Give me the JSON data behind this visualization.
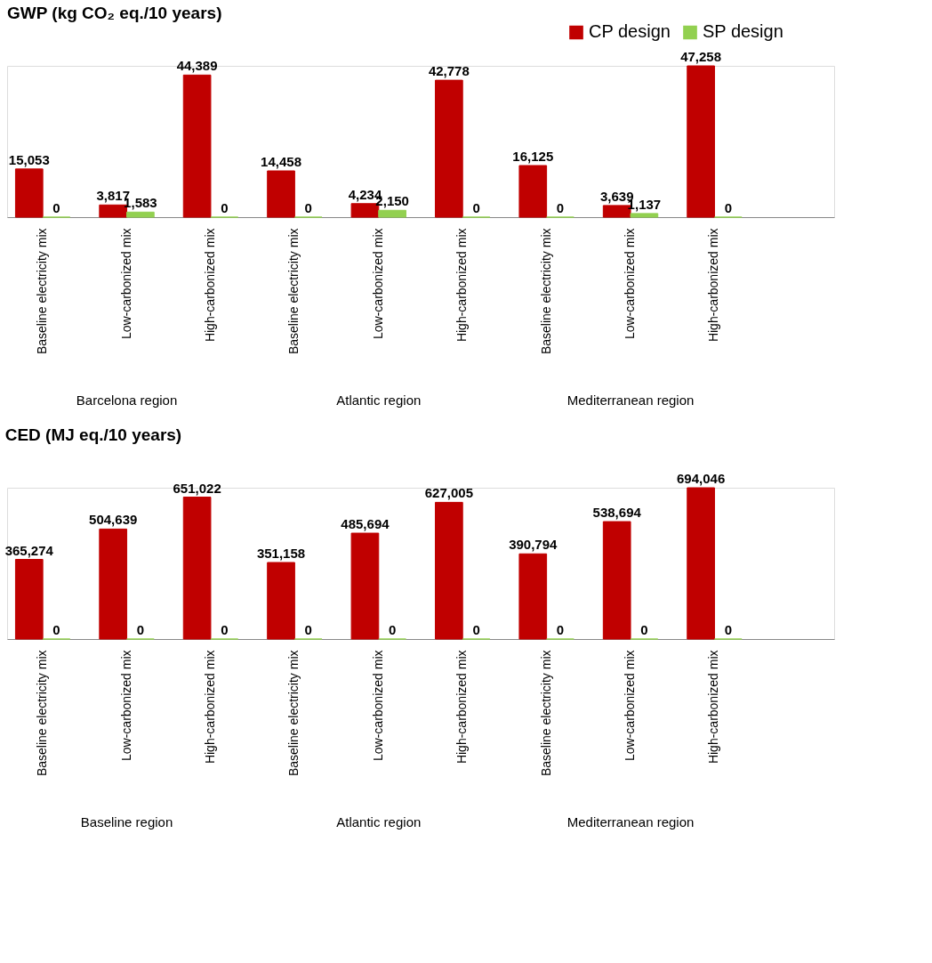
{
  "chart_data": [
    {
      "type": "bar",
      "title": "GWP (kg CO₂ eq./10 years)",
      "categories": [
        "Baseline electricity mix",
        "Low-carbonized mix",
        "High-carbonized mix",
        "Baseline electricity mix",
        "Low-carbonized mix",
        "High-carbonized mix",
        "Baseline electricity mix",
        "Low-carbonized mix",
        "High-carbonized mix",
        null
      ],
      "series": [
        {
          "name": "CP design",
          "color": "#c00000",
          "values": [
            15053,
            3817,
            44389,
            14458,
            4234,
            42778,
            16125,
            3639,
            47258,
            null
          ],
          "value_labels": [
            "15,053",
            "3,817",
            "44,389",
            "14,458",
            "4,234",
            "42,778",
            "16,125",
            "3,639",
            "47,258",
            null
          ]
        },
        {
          "name": "SP design",
          "color": "#92d050",
          "values": [
            0,
            1583,
            0,
            0,
            2150,
            0,
            0,
            1137,
            0,
            null
          ],
          "value_labels": [
            "0",
            "1,583",
            "0",
            "0",
            "2,150",
            "0",
            "0",
            "1,137",
            "0",
            null
          ]
        }
      ],
      "annotations": [
        "Barcelona region",
        "Atlantic region",
        "Mediterranean region"
      ],
      "legend": "top right",
      "grid": false
    },
    {
      "type": "bar",
      "title": "CED (MJ eq./10 years)",
      "categories": [
        "Baseline electricity mix",
        "Low-carbonized mix",
        "High-carbonized mix",
        "Baseline electricity mix",
        "Low-carbonized mix",
        "High-carbonized mix",
        "Baseline electricity mix",
        "Low-carbonized mix",
        "High-carbonized mix",
        null
      ],
      "series": [
        {
          "name": "CP design",
          "color": "#c00000",
          "values": [
            365274,
            504639,
            651022,
            351158,
            485694,
            627005,
            390794,
            538694,
            694046,
            null
          ],
          "value_labels": [
            "365,274",
            "504,639",
            "651,022",
            "351,158",
            "485,694",
            "627,005",
            "390,794",
            "538,694",
            "694,046",
            null
          ]
        },
        {
          "name": "SP design",
          "color": "#92d050",
          "values": [
            0,
            0,
            0,
            0,
            0,
            0,
            0,
            0,
            0,
            null
          ],
          "value_labels": [
            "0",
            "0",
            "0",
            "0",
            "0",
            "0",
            "0",
            "0",
            "0",
            null
          ]
        }
      ],
      "annotations": [
        "Baseline region",
        "Atlantic region",
        "Mediterranean region"
      ],
      "legend": "top right",
      "grid": false
    }
  ]
}
